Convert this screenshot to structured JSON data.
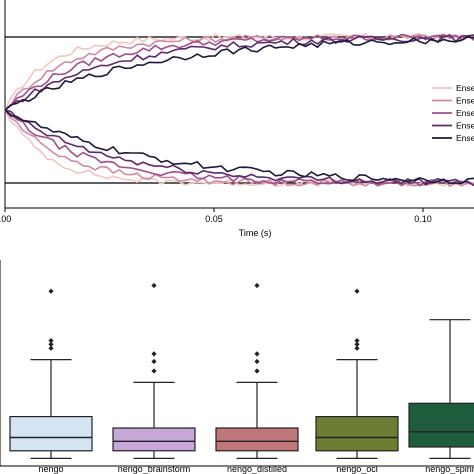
{
  "chart_data": [
    {
      "type": "line",
      "title": "",
      "xlabel": "Time (s)",
      "ylabel": "",
      "xlim": [
        0.0,
        0.115
      ],
      "ylim": [
        -1.08,
        1.08
      ],
      "x_ticks": [
        0.0,
        0.05,
        0.1
      ],
      "x_tick_labels": [
        ".00",
        "0.05",
        "0.10"
      ],
      "reference_lines": [
        1.0,
        -1.0
      ],
      "legend_position": "right",
      "legend_labels": [
        "Ense",
        "Ense",
        "Ense",
        "Ense",
        "Ense"
      ],
      "series": [
        {
          "color": "#f2c6c0",
          "tau": 0.01
        },
        {
          "color": "#d08aa6",
          "tau": 0.014
        },
        {
          "color": "#a0508c",
          "tau": 0.019
        },
        {
          "color": "#5e2a6e",
          "tau": 0.025
        },
        {
          "color": "#1e1a3c",
          "tau": 0.033
        }
      ]
    },
    {
      "type": "box",
      "title": "",
      "xlabel": "",
      "ylabel": "",
      "ylim": [
        0,
        100
      ],
      "categories": [
        "nengo",
        "nengo_brainstorm",
        "nengo_distilled",
        "nengo_ocl",
        "nengo_spinr"
      ],
      "boxes": [
        {
          "name": "nengo",
          "whisker_low": 4,
          "q1": 8,
          "median": 15,
          "q3": 26,
          "whisker_high": 56,
          "outliers": [
            62,
            64,
            66,
            92
          ],
          "fill": "#d4e6f4"
        },
        {
          "name": "nengo_brainstorm",
          "whisker_low": 4,
          "q1": 8,
          "median": 13,
          "q3": 20,
          "whisker_high": 44,
          "outliers": [
            50,
            55,
            59,
            95
          ],
          "fill": "#c7a8d9"
        },
        {
          "name": "nengo_distilled",
          "whisker_low": 4,
          "q1": 8,
          "median": 13,
          "q3": 20,
          "whisker_high": 44,
          "outliers": [
            50,
            55,
            59,
            95
          ],
          "fill": "#c0777a"
        },
        {
          "name": "nengo_ocl",
          "whisker_low": 4,
          "q1": 8,
          "median": 15,
          "q3": 26,
          "whisker_high": 56,
          "outliers": [
            62,
            64,
            66,
            92
          ],
          "fill": "#6b7e34"
        },
        {
          "name": "nengo_spinr",
          "whisker_low": 4,
          "q1": 10,
          "median": 18,
          "q3": 33,
          "whisker_high": 77,
          "outliers": [],
          "fill": "#1e5c3e"
        }
      ]
    }
  ]
}
